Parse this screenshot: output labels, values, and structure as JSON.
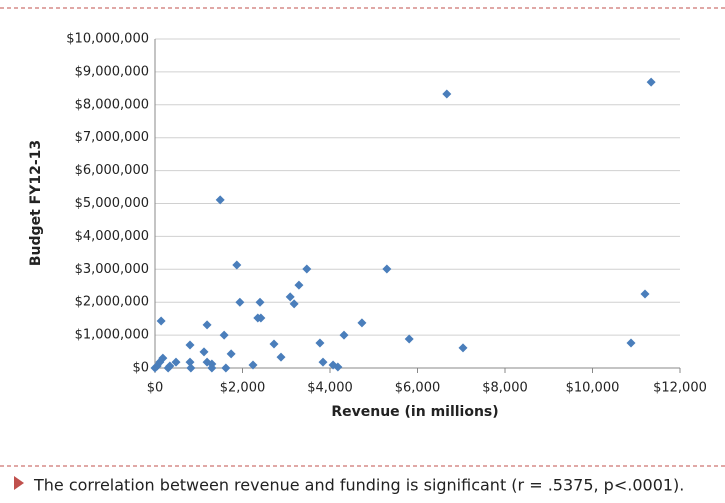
{
  "chart_data": {
    "type": "scatter",
    "xlabel": "Revenue (in millions)",
    "ylabel": "Budget FY12-13",
    "color": "#4a7ebb",
    "grid": true,
    "xlim": [
      0,
      12000
    ],
    "ylim": [
      0,
      10000000
    ],
    "xticks": [
      {
        "value": 0,
        "label": "$0"
      },
      {
        "value": 2000,
        "label": "$2,000"
      },
      {
        "value": 4000,
        "label": "$4,000"
      },
      {
        "value": 6000,
        "label": "$6,000"
      },
      {
        "value": 8000,
        "label": "$8,000"
      },
      {
        "value": 10000,
        "label": "$10,000"
      },
      {
        "value": 12000,
        "label": "$12,000"
      }
    ],
    "yticks": [
      {
        "value": 0,
        "label": "$0"
      },
      {
        "value": 1000000,
        "label": "$1,000,000"
      },
      {
        "value": 2000000,
        "label": "$2,000,000"
      },
      {
        "value": 3000000,
        "label": "$3,000,000"
      },
      {
        "value": 4000000,
        "label": "$4,000,000"
      },
      {
        "value": 5000000,
        "label": "$5,000,000"
      },
      {
        "value": 6000000,
        "label": "$6,000,000"
      },
      {
        "value": 7000000,
        "label": "$7,000,000"
      },
      {
        "value": 8000000,
        "label": "$8,000,000"
      },
      {
        "value": 9000000,
        "label": "$9,000,000"
      },
      {
        "value": 10000000,
        "label": "$10,000,000"
      }
    ],
    "x": [
      0,
      50,
      110,
      180,
      140,
      300,
      340,
      480,
      800,
      800,
      820,
      1120,
      1190,
      1190,
      1300,
      1300,
      1490,
      1580,
      1620,
      1740,
      1870,
      1940,
      2240,
      2350,
      2420,
      2400,
      2720,
      2880,
      3090,
      3180,
      3290,
      3470,
      3770,
      3840,
      4070,
      4180,
      4320,
      4730,
      5300,
      5810,
      6670,
      7040,
      10880,
      11200,
      11340
    ],
    "y": [
      0,
      60000,
      180000,
      300000,
      1430000,
      0,
      60000,
      180000,
      700000,
      180000,
      0,
      490000,
      1310000,
      180000,
      120000,
      0,
      5110000,
      1000000,
      0,
      430000,
      3130000,
      2000000,
      90000,
      1520000,
      1520000,
      2000000,
      730000,
      330000,
      2160000,
      1950000,
      2520000,
      3010000,
      760000,
      180000,
      90000,
      30000,
      1000000,
      1370000,
      3010000,
      880000,
      8330000,
      610000,
      760000,
      2250000,
      8690000
    ]
  },
  "footer": {
    "text": "The correlation between revenue and funding is significant (r = .5375, p<.0001)."
  }
}
